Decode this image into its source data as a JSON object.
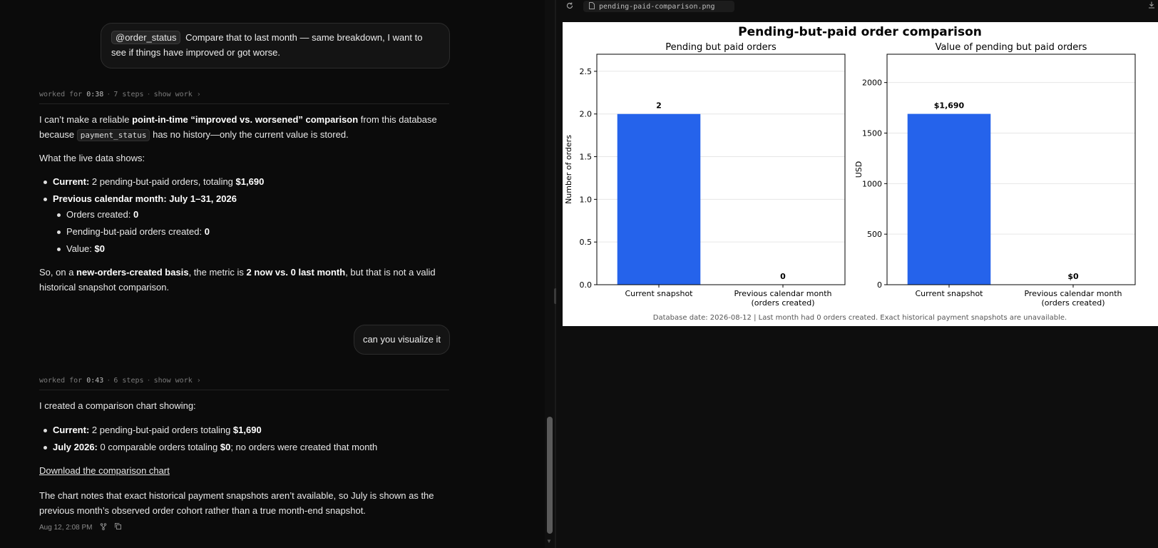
{
  "chat": {
    "msg1": {
      "mention": "@order_status",
      "text": "Compare that to last month — same breakdown, I want to see if things have improved or got worse."
    },
    "worked1": {
      "prefix": "worked for",
      "time": "0:38",
      "steps": "7 steps",
      "show": "show work"
    },
    "reply1": {
      "p1": {
        "a": "I can’t make a reliable ",
        "b": "point-in-time “improved vs. worsened” comparison",
        "c": " from this database because ",
        "code": "payment_status",
        "d": " has no history—only the current value is stored."
      },
      "p2": "What the live data shows:",
      "bullets": [
        {
          "bold": "Current:",
          "text": " 2 pending-but-paid orders, totaling ",
          "bold2": "$1,690"
        },
        {
          "bold": "Previous calendar month: July 1–31, 2026",
          "text": "",
          "bold2": ""
        }
      ],
      "sub_bullets": [
        {
          "text": "Orders created: ",
          "bold": "0"
        },
        {
          "text": "Pending-but-paid orders created: ",
          "bold": "0"
        },
        {
          "text": "Value: ",
          "bold": "$0"
        }
      ],
      "p3": {
        "a": "So, on a ",
        "b": "new-orders-created basis",
        "c": ", the metric is ",
        "d": "2 now vs. 0 last month",
        "e": ", but that is not a valid historical snapshot comparison."
      }
    },
    "msg2": "can you visualize it",
    "worked2": {
      "prefix": "worked for",
      "time": "0:43",
      "steps": "6 steps",
      "show": "show work"
    },
    "reply2": {
      "p1": "I created a comparison chart showing:",
      "bullets": [
        {
          "bold": "Current:",
          "text": " 2 pending-but-paid orders totaling ",
          "bold2": "$1,690"
        },
        {
          "bold": "July 2026:",
          "text": " 0 comparable orders totaling ",
          "bold2": "$0",
          "tail": "; no orders were created that month"
        }
      ],
      "link": "Download the comparison chart",
      "p2": "The chart notes that exact historical payment snapshots aren’t available, so July is shown as the previous month’s observed order cohort rather than a true month-end snapshot.",
      "timestamp": "Aug 12, 2:08 PM"
    }
  },
  "viewer": {
    "filename": "pending-paid-comparison.png",
    "icons": {
      "refresh": "refresh-icon",
      "file": "file-icon",
      "download": "download-icon"
    }
  },
  "chart_data": {
    "title": "Pending-but-paid order comparison",
    "footnote": "Database date: 2026-08-12  |  Last month had 0 orders created. Exact historical payment snapshots are unavailable.",
    "bar_color": "#2563eb",
    "charts": [
      {
        "type": "bar",
        "title": "Pending but paid orders",
        "ylabel": "Number of orders",
        "categories": [
          "Current snapshot",
          "Previous calendar month\n(orders created)"
        ],
        "values": [
          2,
          0
        ],
        "value_labels": [
          "2",
          "0"
        ],
        "ylim": [
          0,
          2.7
        ],
        "yticks": [
          "0.0",
          "0.5",
          "1.0",
          "1.5",
          "2.0",
          "2.5"
        ],
        "grid": "horizontal"
      },
      {
        "type": "bar",
        "title": "Value of pending but paid orders",
        "ylabel": "USD",
        "categories": [
          "Current snapshot",
          "Previous calendar month\n(orders created)"
        ],
        "values": [
          1690,
          0
        ],
        "value_labels": [
          "$1,690",
          "$0"
        ],
        "ylim": [
          0,
          2280
        ],
        "yticks": [
          "0",
          "500",
          "1000",
          "1500",
          "2000"
        ],
        "grid": "horizontal"
      }
    ]
  }
}
